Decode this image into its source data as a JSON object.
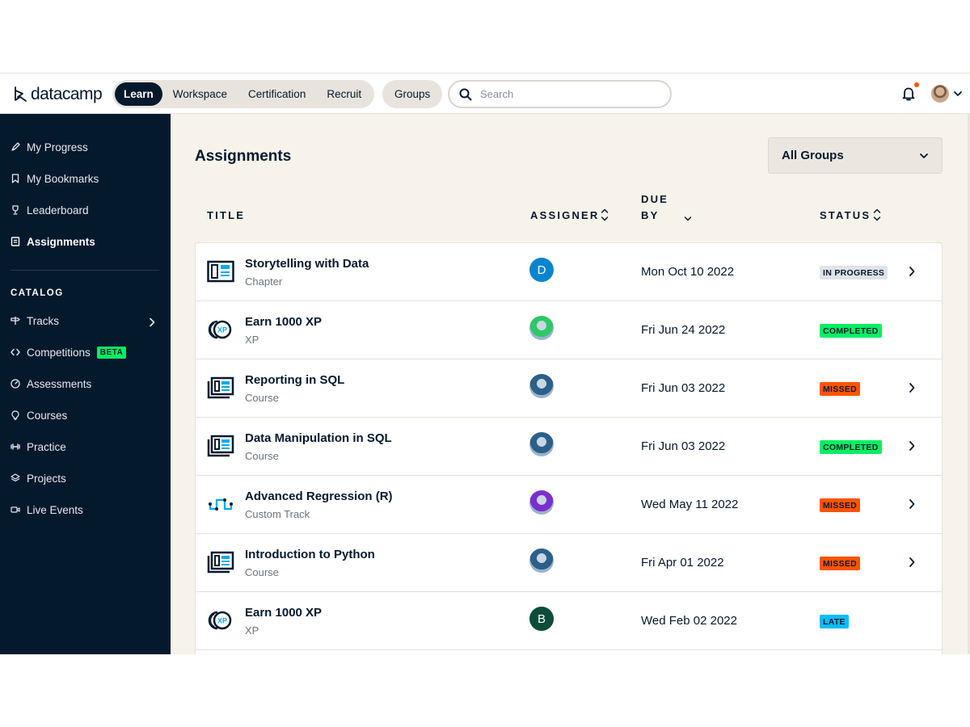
{
  "brand": {
    "name": "datacamp"
  },
  "topnav": {
    "tabs": [
      {
        "label": "Learn",
        "active": true
      },
      {
        "label": "Workspace",
        "active": false
      },
      {
        "label": "Certification",
        "active": false
      },
      {
        "label": "Recruit",
        "active": false
      }
    ],
    "groups_label": "Groups",
    "search_placeholder": "Search",
    "notification_indicator": true
  },
  "sidebar": {
    "items": [
      {
        "label": "My Progress",
        "icon": "rocket-icon"
      },
      {
        "label": "My Bookmarks",
        "icon": "bookmark-icon"
      },
      {
        "label": "Leaderboard",
        "icon": "trophy-icon"
      },
      {
        "label": "Assignments",
        "icon": "clipboard-icon",
        "active": true
      }
    ],
    "catalog_heading": "CATALOG",
    "catalog": [
      {
        "label": "Tracks",
        "icon": "signpost-icon"
      },
      {
        "label": "Competitions",
        "icon": "code-icon",
        "badge": "BETA"
      },
      {
        "label": "Assessments",
        "icon": "gauge-icon"
      },
      {
        "label": "Courses",
        "icon": "lightbulb-icon"
      },
      {
        "label": "Practice",
        "icon": "dumbbell-icon"
      },
      {
        "label": "Projects",
        "icon": "layers-icon"
      },
      {
        "label": "Live Events",
        "icon": "video-icon"
      }
    ]
  },
  "main": {
    "title": "Assignments",
    "group_filter": "All Groups",
    "columns": {
      "title": "TITLE",
      "assigner": "ASSIGNER",
      "due_line1": "DUE",
      "due_line2": "BY",
      "status": "STATUS"
    },
    "rows": [
      {
        "title": "Storytelling with Data",
        "type": "Chapter",
        "icon": "chapter-icon",
        "avatar": "D",
        "avatar_color": "#0884cf",
        "due": "Mon Oct 10 2022",
        "status": "IN PROGRESS",
        "status_bg": "#dfe3e8",
        "status_fg": "#05192d",
        "chevron": true
      },
      {
        "title": "Earn 1000 XP",
        "type": "XP",
        "icon": "xp-icon",
        "avatar": "",
        "avatar_color": "#2ec866",
        "due": "Fri Jun 24 2022",
        "status": "COMPLETED",
        "status_bg": "#03ef62",
        "status_fg": "#05192d",
        "chevron": false
      },
      {
        "title": "Reporting in SQL",
        "type": "Course",
        "icon": "course-icon",
        "avatar": "",
        "avatar_color": "#2c5f8a",
        "due": "Fri Jun 03 2022",
        "status": "MISSED",
        "status_bg": "#ff5400",
        "status_fg": "#05192d",
        "chevron": true
      },
      {
        "title": "Data Manipulation in SQL",
        "type": "Course",
        "icon": "course-icon",
        "avatar": "",
        "avatar_color": "#2c5f8a",
        "due": "Fri Jun 03 2022",
        "status": "COMPLETED",
        "status_bg": "#03ef62",
        "status_fg": "#05192d",
        "chevron": true
      },
      {
        "title": "Advanced Regression (R)",
        "type": "Custom Track",
        "icon": "track-icon",
        "avatar": "",
        "avatar_color": "#7b2fd0",
        "due": "Wed May 11 2022",
        "status": "MISSED",
        "status_bg": "#ff5400",
        "status_fg": "#05192d",
        "chevron": true
      },
      {
        "title": "Introduction to Python",
        "type": "Course",
        "icon": "course-icon",
        "avatar": "",
        "avatar_color": "#2c5f8a",
        "due": "Fri Apr 01 2022",
        "status": "MISSED",
        "status_bg": "#ff5400",
        "status_fg": "#05192d",
        "chevron": true
      },
      {
        "title": "Earn 1000 XP",
        "type": "XP",
        "icon": "xp-icon",
        "avatar": "B",
        "avatar_color": "#0b4d3a",
        "due": "Wed Feb 02 2022",
        "status": "LATE",
        "status_bg": "#06bdfc",
        "status_fg": "#05192d",
        "chevron": false
      }
    ]
  },
  "colors": {
    "navy": "#05192d",
    "green": "#03ef62",
    "orange": "#ff5400",
    "blue": "#06bdfc",
    "beige": "#f7f3eb"
  }
}
